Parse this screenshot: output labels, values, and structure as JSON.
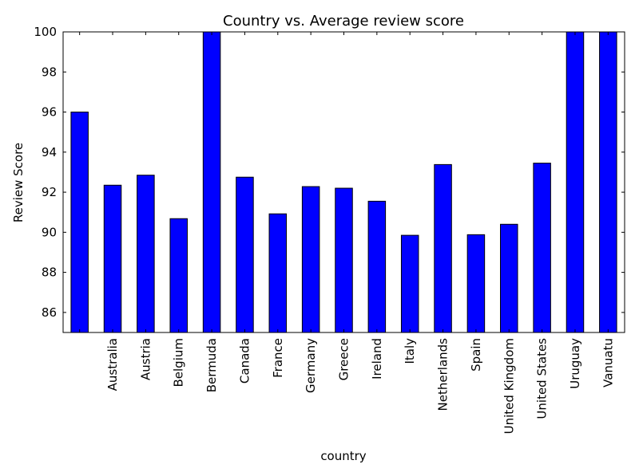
{
  "chart_data": {
    "type": "bar",
    "title": "Country vs. Average review score",
    "xlabel": "country",
    "ylabel": "Review Score",
    "ylim": [
      85,
      100
    ],
    "yticks": [
      86,
      88,
      90,
      92,
      94,
      96,
      98,
      100
    ],
    "grid": false,
    "legend": "none",
    "bar_color": "#0000ff",
    "categories": [
      "",
      "Australia",
      "Austria",
      "Belgium",
      "Bermuda",
      "Canada",
      "France",
      "Germany",
      "Greece",
      "Ireland",
      "Italy",
      "Netherlands",
      "Spain",
      "United Kingdom",
      "United States",
      "Uruguay",
      "Vanuatu"
    ],
    "values": [
      96.0,
      92.35,
      92.85,
      90.68,
      100.0,
      92.75,
      90.92,
      92.28,
      92.2,
      91.55,
      89.85,
      93.38,
      89.88,
      90.4,
      93.45,
      100.0,
      100.0
    ]
  }
}
